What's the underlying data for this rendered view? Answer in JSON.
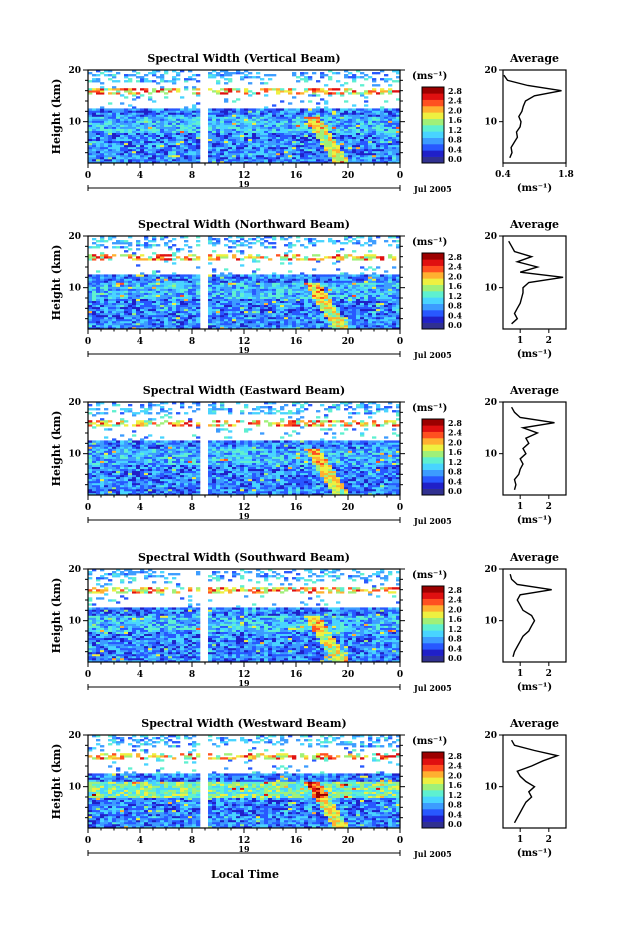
{
  "colors": {
    "colormap": [
      "#303090",
      "#2020c8",
      "#2858ff",
      "#3c9cff",
      "#48d4ff",
      "#5ef0d0",
      "#a0f078",
      "#eef040",
      "#ffb030",
      "#ff5020",
      "#e01010",
      "#9c0000"
    ]
  },
  "chart_data": [
    {
      "type": "heatmap",
      "title": "Spectral Width (Vertical Beam)",
      "ylabel": "Height (km)",
      "x_ticks": [
        "0",
        "4",
        "8",
        "12",
        "16",
        "20",
        "0"
      ],
      "date_ticks": [
        "19",
        "Jul 2005"
      ],
      "xlim": [
        0,
        24
      ],
      "ylim": [
        2,
        20
      ],
      "gap_hours": [
        8.7,
        9.2
      ],
      "colorbar": {
        "unit": "(ms⁻¹)",
        "ticks": [
          "2.8",
          "2.4",
          "2.0",
          "1.6",
          "1.2",
          "0.8",
          "0.4",
          "0.0"
        ],
        "range": [
          0,
          2.8
        ]
      },
      "average": {
        "title": "Average",
        "xlabel": "(ms⁻¹)",
        "xticks": [
          "0.4",
          "1.8"
        ],
        "xlim": [
          0.4,
          1.8
        ],
        "profile": [
          [
            3,
            0.55
          ],
          [
            4,
            0.6
          ],
          [
            5,
            0.58
          ],
          [
            6,
            0.65
          ],
          [
            7,
            0.72
          ],
          [
            8,
            0.7
          ],
          [
            9,
            0.78
          ],
          [
            10,
            0.8
          ],
          [
            11,
            0.75
          ],
          [
            12,
            0.82
          ],
          [
            13,
            0.85
          ],
          [
            14,
            0.9
          ],
          [
            15,
            1.1
          ],
          [
            16,
            1.7
          ],
          [
            17,
            0.95
          ],
          [
            18,
            0.5
          ],
          [
            19,
            0.42
          ]
        ]
      }
    },
    {
      "type": "heatmap",
      "title": "Spectral Width (Northward Beam)",
      "ylabel": "Height (km)",
      "x_ticks": [
        "0",
        "4",
        "8",
        "12",
        "16",
        "20",
        "0"
      ],
      "date_ticks": [
        "19",
        "Jul 2005"
      ],
      "xlim": [
        0,
        24
      ],
      "ylim": [
        2,
        20
      ],
      "gap_hours": [
        8.7,
        9.2
      ],
      "colorbar": {
        "unit": "(ms⁻¹)",
        "ticks": [
          "2.8",
          "2.4",
          "2.0",
          "1.6",
          "1.2",
          "0.8",
          "0.4",
          "0.0"
        ],
        "range": [
          0,
          2.8
        ]
      },
      "average": {
        "title": "Average",
        "xlabel": "(ms⁻¹)",
        "xticks": [
          "1",
          "2"
        ],
        "xlim": [
          0.4,
          2.6
        ],
        "profile": [
          [
            3,
            0.7
          ],
          [
            4,
            0.9
          ],
          [
            5,
            0.8
          ],
          [
            6,
            0.9
          ],
          [
            7,
            1.0
          ],
          [
            8,
            1.05
          ],
          [
            9,
            1.1
          ],
          [
            10,
            1.1
          ],
          [
            11,
            1.3
          ],
          [
            12,
            2.5
          ],
          [
            13,
            1.0
          ],
          [
            14,
            1.6
          ],
          [
            15,
            0.9
          ],
          [
            16,
            1.4
          ],
          [
            17,
            0.8
          ],
          [
            18,
            0.7
          ],
          [
            19,
            0.6
          ]
        ]
      }
    },
    {
      "type": "heatmap",
      "title": "Spectral Width (Eastward Beam)",
      "ylabel": "Height (km)",
      "x_ticks": [
        "0",
        "4",
        "8",
        "12",
        "16",
        "20",
        "0"
      ],
      "date_ticks": [
        "19",
        "Jul 2005"
      ],
      "xlim": [
        0,
        24
      ],
      "ylim": [
        2,
        20
      ],
      "gap_hours": [
        8.7,
        9.2
      ],
      "colorbar": {
        "unit": "(ms⁻¹)",
        "ticks": [
          "2.8",
          "2.4",
          "2.0",
          "1.6",
          "1.2",
          "0.8",
          "0.4",
          "0.0"
        ],
        "range": [
          0,
          2.8
        ]
      },
      "average": {
        "title": "Average",
        "xlabel": "(ms⁻¹)",
        "xticks": [
          "1",
          "2"
        ],
        "xlim": [
          0.4,
          2.6
        ],
        "profile": [
          [
            3,
            0.8
          ],
          [
            4,
            0.85
          ],
          [
            5,
            0.8
          ],
          [
            6,
            0.95
          ],
          [
            7,
            1.0
          ],
          [
            8,
            1.1
          ],
          [
            9,
            1.0
          ],
          [
            10,
            1.2
          ],
          [
            11,
            1.1
          ],
          [
            12,
            1.3
          ],
          [
            13,
            1.2
          ],
          [
            14,
            1.6
          ],
          [
            15,
            1.1
          ],
          [
            16,
            2.2
          ],
          [
            17,
            1.0
          ],
          [
            18,
            0.8
          ],
          [
            19,
            0.7
          ]
        ]
      }
    },
    {
      "type": "heatmap",
      "title": "Spectral Width (Southward Beam)",
      "ylabel": "Height (km)",
      "x_ticks": [
        "0",
        "4",
        "8",
        "12",
        "16",
        "20",
        "0"
      ],
      "date_ticks": [
        "19",
        "Jul 2005"
      ],
      "xlim": [
        0,
        24
      ],
      "ylim": [
        2,
        20
      ],
      "gap_hours": [
        8.7,
        9.2
      ],
      "colorbar": {
        "unit": "(ms⁻¹)",
        "ticks": [
          "2.8",
          "2.4",
          "2.0",
          "1.6",
          "1.2",
          "0.8",
          "0.4",
          "0.0"
        ],
        "range": [
          0,
          2.8
        ]
      },
      "average": {
        "title": "Average",
        "xlabel": "(ms⁻¹)",
        "xticks": [
          "1",
          "2"
        ],
        "xlim": [
          0.4,
          2.6
        ],
        "profile": [
          [
            3,
            0.75
          ],
          [
            4,
            0.8
          ],
          [
            5,
            0.9
          ],
          [
            6,
            1.0
          ],
          [
            7,
            1.1
          ],
          [
            8,
            1.3
          ],
          [
            9,
            1.4
          ],
          [
            10,
            1.5
          ],
          [
            11,
            1.4
          ],
          [
            12,
            1.1
          ],
          [
            13,
            1.0
          ],
          [
            14,
            0.9
          ],
          [
            15,
            1.0
          ],
          [
            16,
            2.1
          ],
          [
            17,
            0.9
          ],
          [
            18,
            0.7
          ],
          [
            19,
            0.65
          ]
        ]
      }
    },
    {
      "type": "heatmap",
      "title": "Spectral Width (Westward Beam)",
      "ylabel": "Height (km)",
      "x_ticks": [
        "0",
        "4",
        "8",
        "12",
        "16",
        "20",
        "0"
      ],
      "date_ticks": [
        "19",
        "Jul 2005"
      ],
      "xlim": [
        0,
        24
      ],
      "ylim": [
        2,
        20
      ],
      "gap_hours": [
        8.7,
        9.2
      ],
      "colorbar": {
        "unit": "(ms⁻¹)",
        "ticks": [
          "2.8",
          "2.4",
          "2.0",
          "1.6",
          "1.2",
          "0.8",
          "0.4",
          "0.0"
        ],
        "range": [
          0,
          2.8
        ]
      },
      "average": {
        "title": "Average",
        "xlabel": "(ms⁻¹)",
        "xticks": [
          "1",
          "2"
        ],
        "xlim": [
          0.4,
          2.6
        ],
        "profile": [
          [
            3,
            0.8
          ],
          [
            4,
            0.9
          ],
          [
            5,
            1.0
          ],
          [
            6,
            1.1
          ],
          [
            7,
            1.2
          ],
          [
            8,
            1.4
          ],
          [
            9,
            1.3
          ],
          [
            10,
            1.5
          ],
          [
            11,
            1.2
          ],
          [
            12,
            1.0
          ],
          [
            13,
            0.9
          ],
          [
            14,
            1.4
          ],
          [
            15,
            1.8
          ],
          [
            16,
            2.3
          ],
          [
            17,
            1.5
          ],
          [
            18,
            0.8
          ],
          [
            19,
            0.7
          ]
        ]
      }
    }
  ],
  "common_xlabel": "Local Time"
}
